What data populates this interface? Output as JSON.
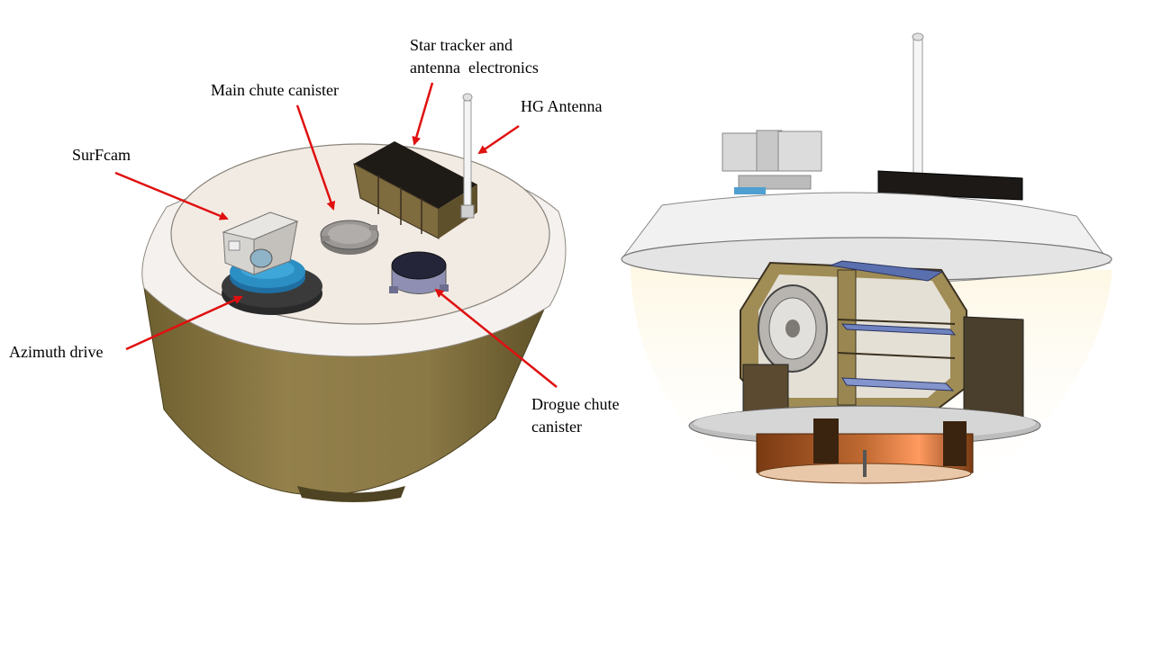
{
  "labels": {
    "star_tracker_line1": "Star tracker and",
    "star_tracker_line2": "antenna  electronics",
    "main_chute": "Main chute canister",
    "hg_antenna": "HG Antenna",
    "surfcam": "SurFcam",
    "azimuth_drive": "Azimuth drive",
    "drogue_line1": "Drogue chute",
    "drogue_line2": "canister"
  },
  "colors": {
    "arrow": "#e01010",
    "body_bronze": "#8c7a4a",
    "lid_cream": "#f2ece6",
    "azimuth_blue": "#2b8fc4",
    "dark_box": "#1e1a16"
  }
}
